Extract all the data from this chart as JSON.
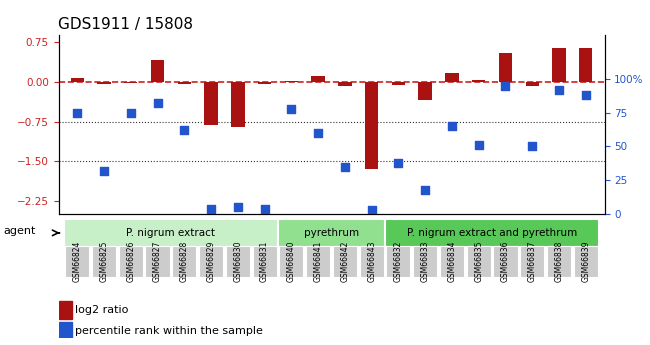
{
  "title": "GDS1911 / 15808",
  "samples": [
    "GSM66824",
    "GSM66825",
    "GSM66826",
    "GSM66827",
    "GSM66828",
    "GSM66829",
    "GSM66830",
    "GSM66831",
    "GSM66840",
    "GSM66841",
    "GSM66842",
    "GSM66843",
    "GSM66832",
    "GSM66833",
    "GSM66834",
    "GSM66835",
    "GSM66836",
    "GSM66837",
    "GSM66838",
    "GSM66839"
  ],
  "log2_ratio": [
    0.07,
    -0.03,
    -0.02,
    0.42,
    -0.04,
    -0.82,
    -0.85,
    -0.03,
    0.02,
    0.12,
    -0.07,
    -1.65,
    -0.05,
    -0.35,
    0.17,
    0.03,
    0.55,
    -0.07,
    0.65,
    0.65
  ],
  "percentile": [
    75,
    32,
    75,
    82,
    62,
    4,
    5,
    4,
    78,
    60,
    35,
    3,
    38,
    18,
    65,
    51,
    95,
    50,
    92,
    88
  ],
  "groups": [
    {
      "label": "P. nigrum extract",
      "start": 0,
      "end": 7,
      "color": "#c8f0c8"
    },
    {
      "label": "pyrethrum",
      "start": 8,
      "end": 11,
      "color": "#90e090"
    },
    {
      "label": "P. nigrum extract and pyrethrum",
      "start": 12,
      "end": 19,
      "color": "#58c858"
    }
  ],
  "bar_color": "#aa1111",
  "dot_color": "#2255cc",
  "ref_line_color": "#cc2222",
  "grid_line_color": "#333333",
  "ylim_left": [
    -2.5,
    0.9
  ],
  "ylim_right": [
    0,
    133
  ],
  "yticks_left": [
    0.75,
    0,
    -0.75,
    -1.5,
    -2.25
  ],
  "yticks_right": [
    0,
    25,
    50,
    75,
    100
  ],
  "bar_width": 0.5
}
